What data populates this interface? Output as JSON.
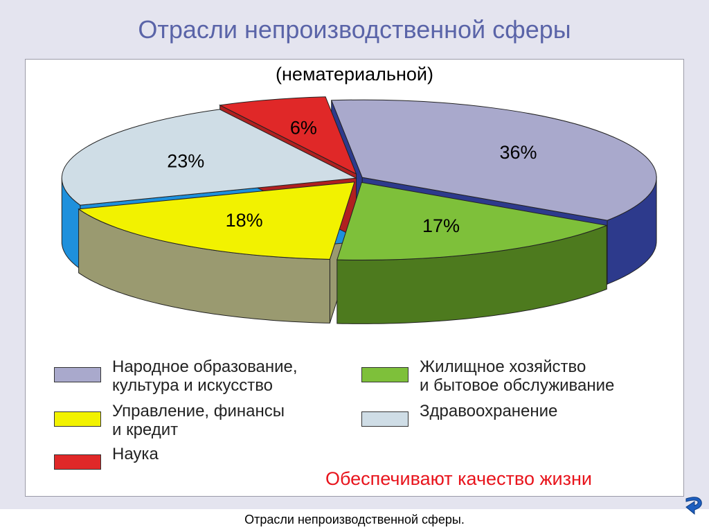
{
  "slide": {
    "title": "Отрасли непроизводственной сферы",
    "subtitle": "(нематериальной)",
    "note": "Обеспечивают качество жизни",
    "footer_caption": "Отрасли непроизводственной сферы.",
    "next_icon": "curved-arrow-icon"
  },
  "chart_data": {
    "type": "pie",
    "title": "",
    "slices": [
      {
        "label": "Народное образование,\nкультура и искусство",
        "value": 36,
        "display": "36%",
        "color": "#a9a9cc",
        "side_color": "#2d3a8c"
      },
      {
        "label": "Жилищное хозяйство\nи бытовое обслуживание",
        "value": 17,
        "display": "17%",
        "color": "#7ec03a",
        "side_color": "#4d7a1e"
      },
      {
        "label": "Управление, финансы\nи кредит",
        "value": 18,
        "display": "18%",
        "color": "#f2f200",
        "side_color": "#9a9a70"
      },
      {
        "label": "Здравоохранение",
        "value": 23,
        "display": "23%",
        "color": "#cfdde6",
        "side_color": "#1e90dc"
      },
      {
        "label": "Наука",
        "value": 6,
        "display": "6%",
        "color": "#e02828",
        "side_color": "#b02020"
      }
    ],
    "legend_placement": "bottom"
  }
}
